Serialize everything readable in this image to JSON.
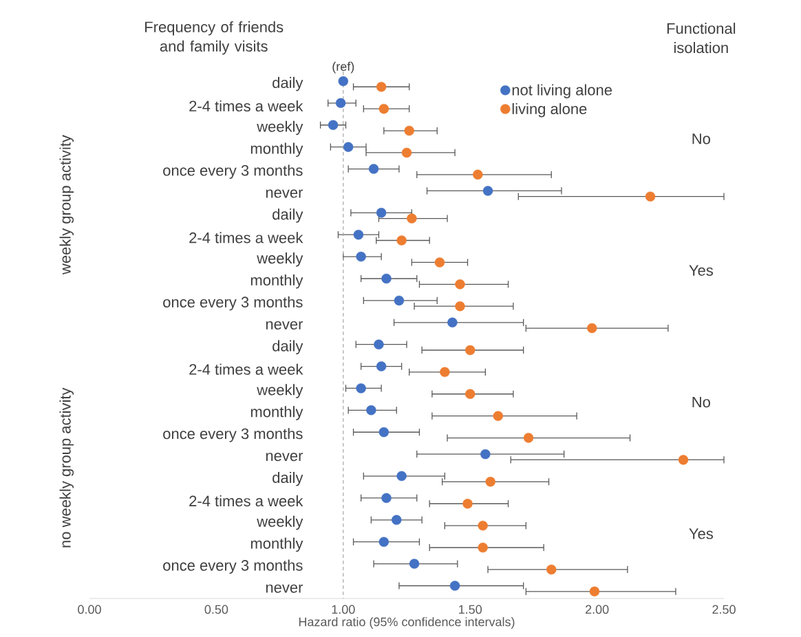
{
  "chart_data": {
    "type": "scatter",
    "orientation": "horizontal",
    "marker": "circle",
    "legend": "top right",
    "xlabel": "Hazard ratio (95% confidence intervals)",
    "categories": [
      "daily",
      "2-4 times a week",
      "weekly",
      "monthly",
      "once every 3 months",
      "never",
      "daily",
      "2-4 times a week",
      "weekly",
      "monthly",
      "once every 3 months",
      "never",
      "daily",
      "2-4 times a week",
      "weekly",
      "monthly",
      "once every 3 months",
      "never",
      "daily",
      "2-4 times a week",
      "weekly",
      "monthly",
      "once every 3 months",
      "never"
    ],
    "xlim": [
      0,
      2.5
    ],
    "xticks": [
      {
        "value": 0,
        "label": "0.00"
      },
      {
        "value": 0.5,
        "label": "0.50"
      },
      {
        "value": 1,
        "label": "1.00"
      },
      {
        "value": 1.5,
        "label": "1.50"
      },
      {
        "value": 2,
        "label": "2.00"
      },
      {
        "value": 2.5,
        "label": "2.50"
      }
    ],
    "ref_lines": [
      {
        "axis": "x",
        "value": 1,
        "line_style": "dashed",
        "color": "#a6a6a6"
      }
    ],
    "annotations": [
      "Frequency of friends and family visits",
      "Functional isolation",
      {
        "text": "(ref)",
        "x": 1,
        "y": "daily"
      },
      "No",
      "Yes",
      "No",
      "Yes",
      "weekly group activity",
      "no weekly group activity"
    ],
    "series": [
      {
        "name": "not living alone",
        "color": "#4472c4",
        "values": [
          1.0,
          0.99,
          0.96,
          1.02,
          1.12,
          1.57,
          1.15,
          1.06,
          1.07,
          1.17,
          1.22,
          1.43,
          1.14,
          1.15,
          1.07,
          1.11,
          1.16,
          1.56,
          1.23,
          1.17,
          1.21,
          1.16,
          1.28,
          1.44
        ],
        "errors": [
          null,
          [
            0.94,
            1.05
          ],
          [
            0.91,
            1.01
          ],
          [
            0.95,
            1.09
          ],
          [
            1.02,
            1.22
          ],
          [
            1.33,
            1.86
          ],
          [
            1.03,
            1.27
          ],
          [
            0.98,
            1.14
          ],
          [
            1.0,
            1.15
          ],
          [
            1.07,
            1.29
          ],
          [
            1.08,
            1.37
          ],
          [
            1.2,
            1.71
          ],
          [
            1.05,
            1.25
          ],
          [
            1.07,
            1.23
          ],
          [
            1.01,
            1.15
          ],
          [
            1.02,
            1.21
          ],
          [
            1.04,
            1.3
          ],
          [
            1.29,
            1.87
          ],
          [
            1.08,
            1.4
          ],
          [
            1.07,
            1.29
          ],
          [
            1.11,
            1.31
          ],
          [
            1.04,
            1.3
          ],
          [
            1.12,
            1.45
          ],
          [
            1.22,
            1.71
          ]
        ]
      },
      {
        "name": "living alone",
        "color": "#ed7d31",
        "values": [
          1.15,
          1.16,
          1.26,
          1.25,
          1.53,
          2.21,
          1.27,
          1.23,
          1.38,
          1.46,
          1.46,
          1.98,
          1.5,
          1.4,
          1.5,
          1.61,
          1.73,
          2.34,
          1.58,
          1.49,
          1.55,
          1.55,
          1.82,
          1.99
        ],
        "errors": [
          [
            1.04,
            1.26
          ],
          [
            1.08,
            1.26
          ],
          [
            1.16,
            1.37
          ],
          [
            1.09,
            1.44
          ],
          [
            1.29,
            1.82
          ],
          [
            1.69,
            2.5
          ],
          [
            1.14,
            1.41
          ],
          [
            1.13,
            1.34
          ],
          [
            1.27,
            1.49
          ],
          [
            1.3,
            1.65
          ],
          [
            1.28,
            1.67
          ],
          [
            1.72,
            2.28
          ],
          [
            1.31,
            1.71
          ],
          [
            1.26,
            1.56
          ],
          [
            1.35,
            1.67
          ],
          [
            1.35,
            1.92
          ],
          [
            1.41,
            2.13
          ],
          [
            1.66,
            2.5
          ],
          [
            1.39,
            1.81
          ],
          [
            1.34,
            1.65
          ],
          [
            1.4,
            1.72
          ],
          [
            1.34,
            1.79
          ],
          [
            1.57,
            2.12
          ],
          [
            1.72,
            2.31
          ]
        ]
      }
    ]
  }
}
